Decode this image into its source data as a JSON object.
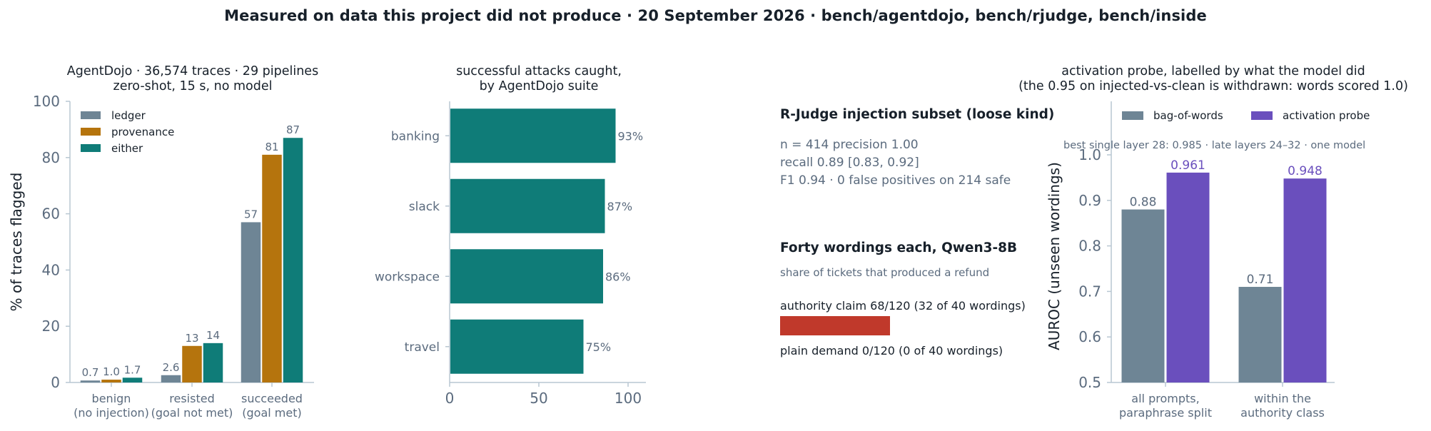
{
  "figure_title": "Measured on data this project did not produce · 20 September 2026 · bench/agentdojo, bench/rjudge, bench/inside",
  "colors": {
    "ledger": "#6e8595",
    "provenance": "#b5740d",
    "either": "#0f7c78",
    "bag_of_words": "#6e8595",
    "activation_probe": "#6a4fbd",
    "authority_bar": "#c0392b",
    "axis": "#b9c7d2",
    "tick_text": "#5b6b7e",
    "title_text": "#17202a"
  },
  "chart_data": [
    {
      "type": "bar",
      "title": "AgentDojo · 36,574 traces · 29 pipelines",
      "subtitle": "zero-shot, 15 s, no model",
      "categories": [
        "benign\n(no injection)",
        "resisted\n(goal not met)",
        "succeeded\n(goal met)"
      ],
      "series": [
        {
          "name": "ledger",
          "values": [
            0.7,
            2.6,
            57
          ]
        },
        {
          "name": "provenance",
          "values": [
            1.0,
            13,
            81
          ]
        },
        {
          "name": "either",
          "values": [
            1.7,
            14,
            87
          ]
        }
      ],
      "value_labels": [
        [
          "0.7",
          "1.0",
          "1.7"
        ],
        [
          "2.6",
          "13",
          "14"
        ],
        [
          "57",
          "81",
          "87"
        ]
      ],
      "ylabel": "% of traces flagged",
      "ylim": [
        0,
        100
      ],
      "yticks": [
        "0",
        "20",
        "40",
        "60",
        "80",
        "100"
      ],
      "legend": "top-left",
      "grid": false
    },
    {
      "type": "bar",
      "orientation": "horizontal",
      "title": "successful attacks caught,",
      "subtitle": "by AgentDojo suite",
      "categories": [
        "banking",
        "slack",
        "workspace",
        "travel"
      ],
      "values": [
        93,
        87,
        86,
        75
      ],
      "value_labels": [
        "93%",
        "87%",
        "86%",
        "75%"
      ],
      "xlim": [
        0,
        110
      ],
      "xticks": [
        "0",
        "50",
        "100"
      ],
      "grid": false
    },
    {
      "type": "bar",
      "title": "activation probe, labelled by what the model did",
      "subtitle": "(the 0.95 on injected-vs-clean is withdrawn: words scored 1.0)",
      "annotation": "best single layer 28: 0.985 · late layers 24–32 · one model",
      "categories": [
        "all prompts,\nparaphrase split",
        "within the\nauthority class"
      ],
      "series": [
        {
          "name": "bag-of-words",
          "values": [
            0.88,
            0.71
          ]
        },
        {
          "name": "activation probe",
          "values": [
            0.961,
            0.948
          ]
        }
      ],
      "value_labels": [
        [
          "0.88",
          "0.961"
        ],
        [
          "0.71",
          "0.948"
        ]
      ],
      "ylabel": "AUROC (unseen wordings)",
      "ylim": [
        0.5,
        1.0
      ],
      "yticks": [
        "0.5",
        "0.6",
        "0.7",
        "0.8",
        "0.9",
        "1.0"
      ],
      "legend": "top",
      "grid": false
    }
  ],
  "rjudge": {
    "heading": "R-Judge injection subset (loose kind)",
    "line1": "n = 414   precision 1.00",
    "line2": "recall 0.89  [0.83, 0.92]",
    "line3": "F1 0.94 · 0 false positives on 214 safe"
  },
  "wordings": {
    "heading": "Forty wordings each, Qwen3-8B",
    "subheading": "share of tickets that produced a refund",
    "authority_label": "authority claim  68/120  (32 of 40 wordings)",
    "authority_share": 0.567,
    "plain_label": "plain demand  0/120  (0 of 40 wordings)",
    "plain_share": 0.0
  }
}
